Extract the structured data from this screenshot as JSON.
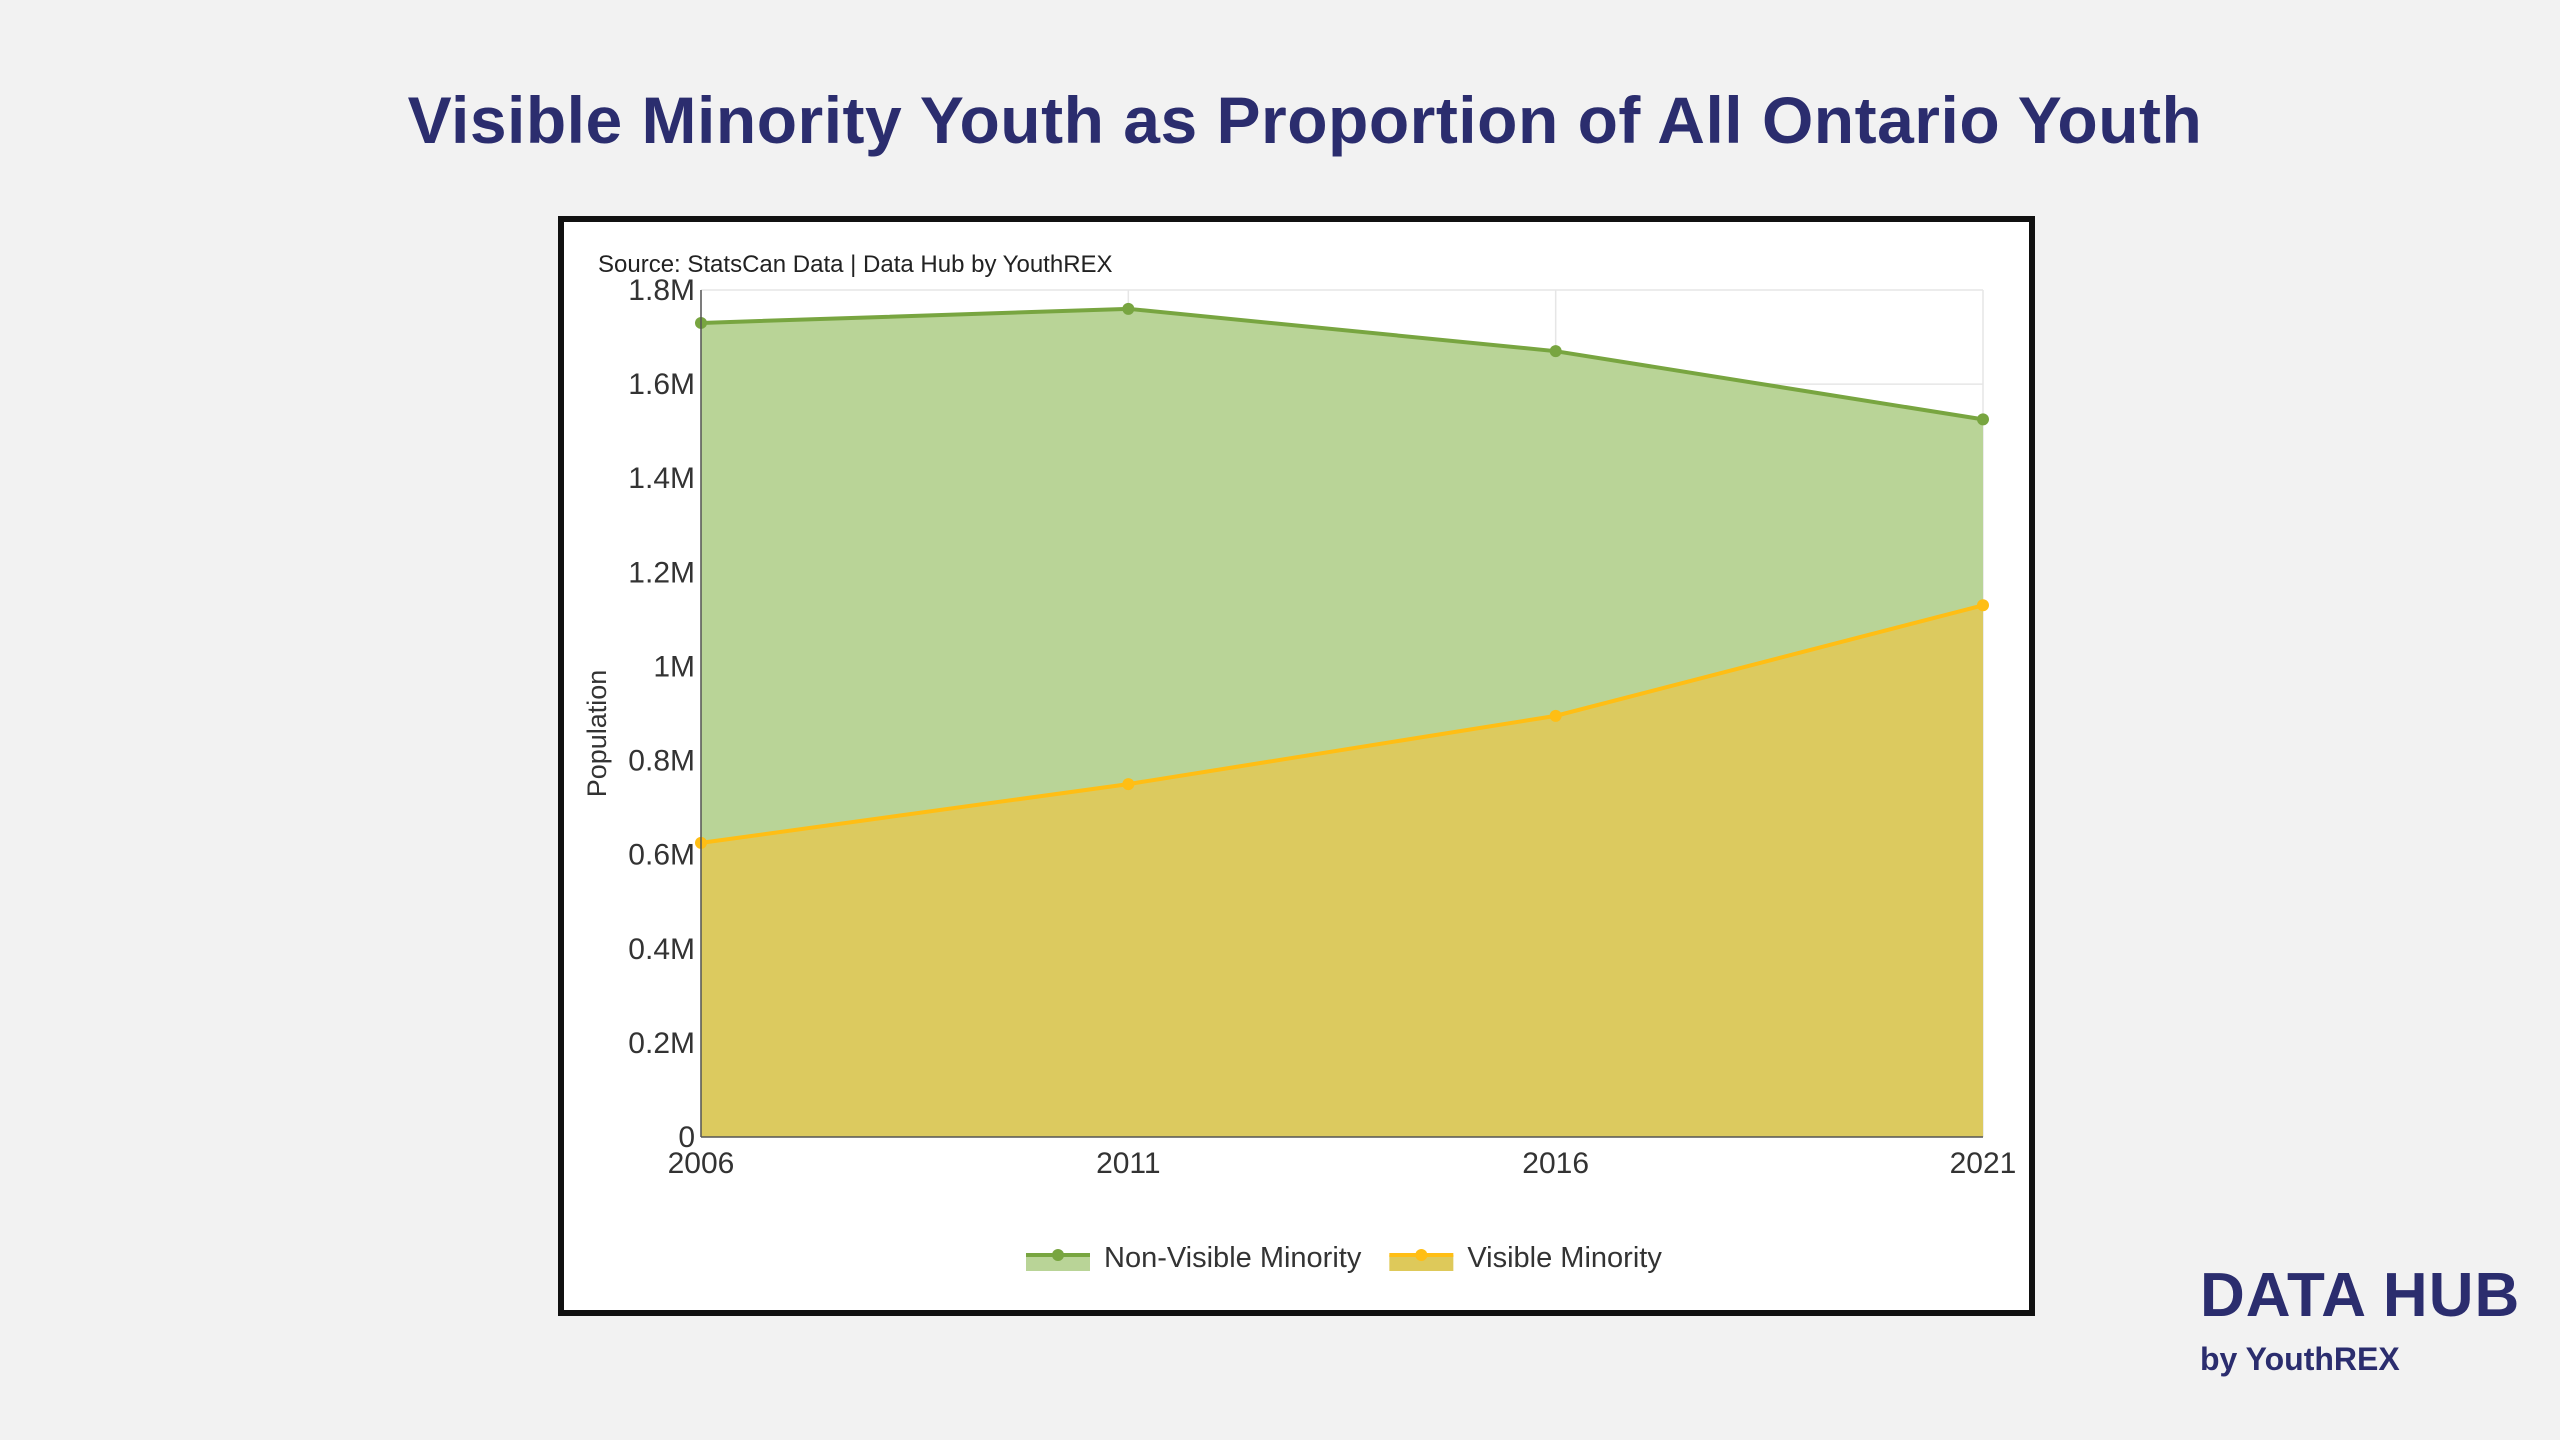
{
  "title": "Visible Minority Youth as Proportion of All Ontario Youth",
  "brand": {
    "name": "DATA HUB",
    "sub": "by YouthREX"
  },
  "chart_data": {
    "type": "area",
    "source_note": "Source: StatsCan Data | Data Hub by YouthREX",
    "xlabel": "",
    "ylabel": "Population",
    "x": [
      2006,
      2011,
      2016,
      2021
    ],
    "x_tick_labels": [
      "2006",
      "2011",
      "2016",
      "2021"
    ],
    "ylim": [
      0,
      1800000
    ],
    "y_ticks": [
      0,
      200000,
      400000,
      600000,
      800000,
      1000000,
      1200000,
      1400000,
      1600000,
      1800000
    ],
    "y_tick_labels": [
      "0",
      "0.2M",
      "0.4M",
      "0.6M",
      "0.8M",
      "1M",
      "1.2M",
      "1.4M",
      "1.6M",
      "1.8M"
    ],
    "grid": true,
    "legend_position": "bottom-center",
    "series": [
      {
        "name": "Non-Visible Minority",
        "values": [
          1730000,
          1760000,
          1670000,
          1525000
        ],
        "line_color": "#78a540",
        "fill_color": "#b9d497"
      },
      {
        "name": "Visible Minority",
        "values": [
          625000,
          750000,
          895000,
          1130000
        ],
        "line_color": "#ffbe14",
        "fill_color": "#dec95a"
      }
    ]
  }
}
